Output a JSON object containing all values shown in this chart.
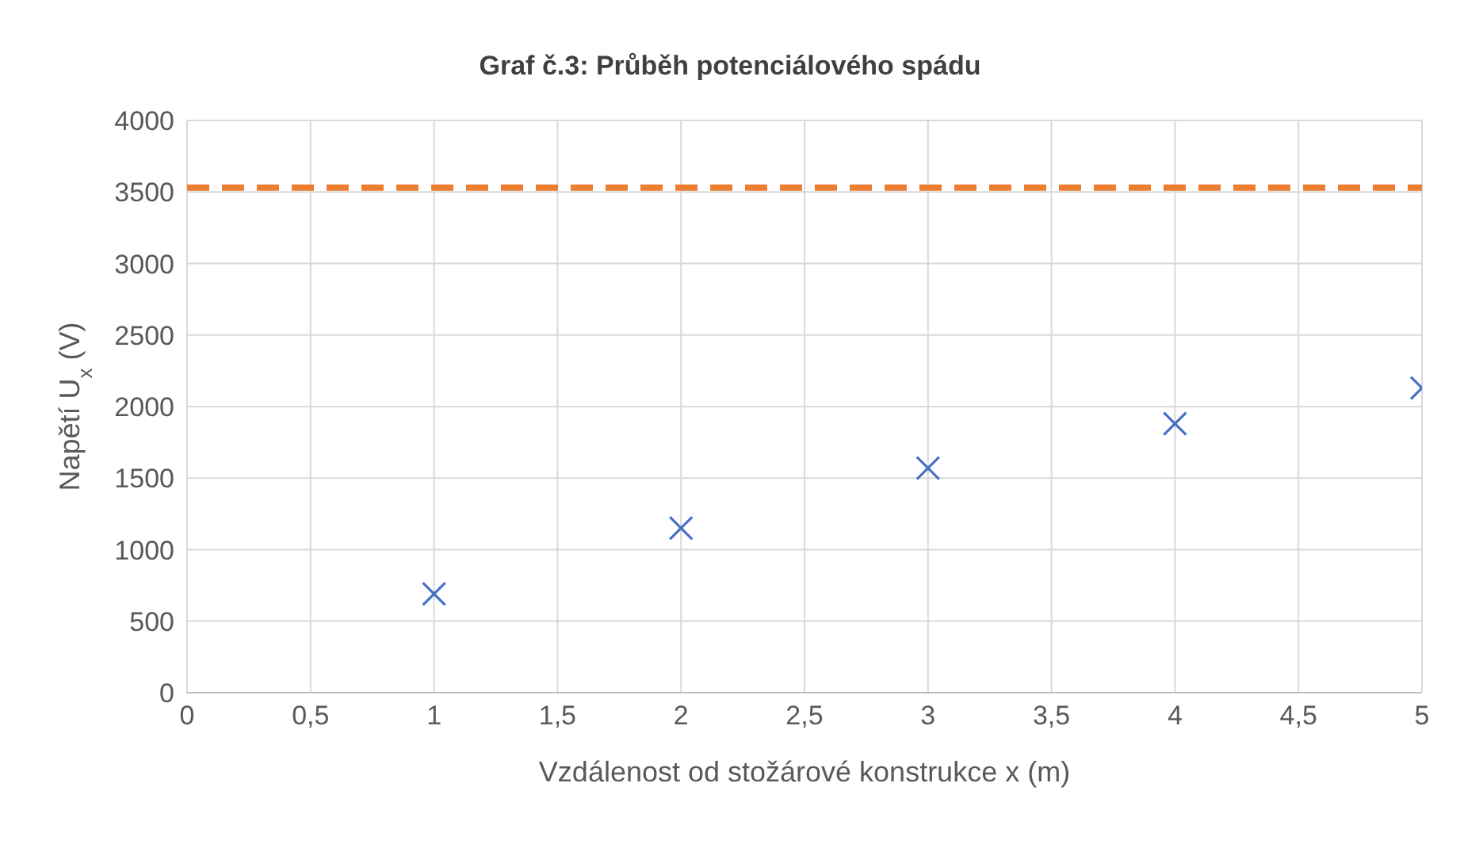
{
  "chart_data": {
    "type": "scatter",
    "title": "Graf č.3: Průběh potenciálového spádu",
    "xlabel": "Vzdálenost od stožárové konstrukce x (m)",
    "ylabel": "Napětí U$_{x}$ (V)",
    "x": [
      1,
      2,
      3,
      4,
      5
    ],
    "series": [
      {
        "color": "#4472c4",
        "values": [
          690,
          1150,
          1570,
          1880,
          2130
        ]
      }
    ],
    "marker": "cross",
    "ref_lines": [
      {
        "axis": "y",
        "value": 3530,
        "color": "#ed7d31",
        "line_style": "dashed"
      }
    ],
    "xlim": [
      0,
      5
    ],
    "xticks": [
      0,
      {
        "value": 0.5,
        "label": "0,5"
      },
      1,
      {
        "value": 1.5,
        "label": "1,5"
      },
      2,
      {
        "value": 2.5,
        "label": "2,5"
      },
      3,
      {
        "value": 3.5,
        "label": "3,5"
      },
      4,
      {
        "value": 4.5,
        "label": "4,5"
      },
      5
    ],
    "ylim": [
      0,
      4000
    ],
    "yticks": [
      0,
      500,
      1000,
      1500,
      2000,
      2500,
      3000,
      3500,
      4000
    ],
    "grid": true,
    "legend": false
  }
}
